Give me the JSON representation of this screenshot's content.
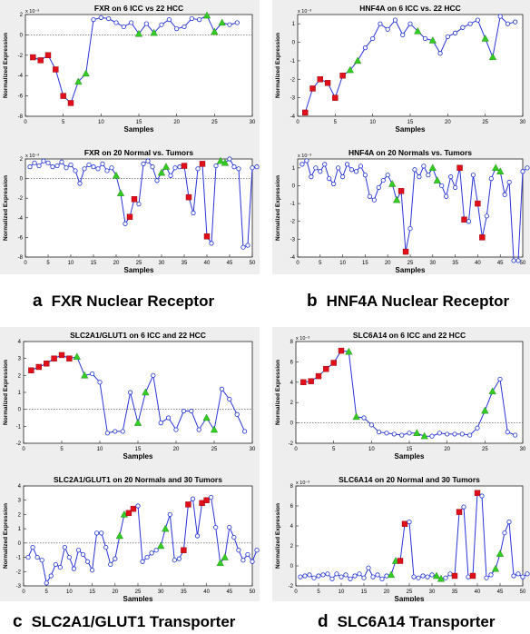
{
  "colors": {
    "line": "#2a35d8",
    "marker_normal": "#1a2fd0",
    "marker_red": "#e0101a",
    "marker_green": "#33cc22"
  },
  "panels": [
    {
      "letter": "a",
      "caption": "FXR Nuclear Receptor"
    },
    {
      "letter": "b",
      "caption": "HNF4A Nuclear Receptor"
    },
    {
      "letter": "c",
      "caption": "SLC2A1/GLUT1 Transporter"
    },
    {
      "letter": "d",
      "caption": "SLC6A14 Transporter"
    }
  ],
  "chart_data": [
    {
      "type": "line",
      "panel": "a",
      "title": "FXR on 6 ICC vs 22 HCC",
      "xlabel": "Samples",
      "ylabel": "Normalized Expression",
      "exponent": "x 10⁻³",
      "xlim": [
        0,
        30
      ],
      "ylim": [
        -8,
        2
      ],
      "xticks": [
        0,
        5,
        10,
        15,
        20,
        25,
        30
      ],
      "yticks": [
        -8,
        -6,
        -4,
        -2,
        0,
        2
      ],
      "zero_line": true,
      "values": [
        -2.2,
        -2.5,
        -2.0,
        -3.4,
        -6.0,
        -6.7,
        -4.6,
        -3.8,
        1.5,
        1.7,
        1.6,
        1.2,
        0.8,
        1.2,
        0.1,
        1.1,
        0.2,
        1.0,
        1.5,
        0.6,
        0.8,
        1.6,
        1.5,
        1.9,
        0.3,
        1.2,
        1.0,
        1.2
      ],
      "red_idx": [
        1,
        2,
        3,
        4,
        5,
        6
      ],
      "green_idx": [
        7,
        8,
        15,
        17,
        24,
        25,
        26
      ]
    },
    {
      "type": "line",
      "panel": "a",
      "title": "FXR on 20 Normal vs. Tumors",
      "xlabel": "Samples",
      "ylabel": "Normalized Expression",
      "exponent": "x 10⁻³",
      "xlim": [
        0,
        50
      ],
      "ylim": [
        -8,
        2
      ],
      "xticks": [
        0,
        5,
        10,
        15,
        20,
        25,
        30,
        35,
        40,
        45,
        50
      ],
      "yticks": [
        -8,
        -6,
        -4,
        -2,
        0,
        2
      ],
      "zero_line": true,
      "values": [
        1.2,
        1.6,
        1.3,
        1.8,
        1.6,
        1.2,
        1.3,
        1.7,
        1.1,
        1.4,
        0.8,
        -0.5,
        1.0,
        1.4,
        1.2,
        1.0,
        1.5,
        0.8,
        1.1,
        0.3,
        -1.5,
        -4.6,
        -3.9,
        -2.1,
        -2.6,
        1.5,
        1.8,
        1.2,
        -0.2,
        0.6,
        1.2,
        0.3,
        1.1,
        1.2,
        1.3,
        -1.9,
        -3.5,
        1.0,
        1.5,
        -5.9,
        -6.6,
        1.3,
        1.8,
        1.6,
        2.0,
        1.2,
        1.0,
        -7.0,
        -6.8,
        1.1,
        1.2
      ],
      "red_idx": [
        23,
        24,
        35,
        36,
        39,
        40
      ],
      "green_idx": [
        20,
        21,
        30,
        31,
        43,
        44
      ]
    },
    {
      "type": "line",
      "panel": "b",
      "title": "HNF4A on 6 ICC vs. 22 HCC",
      "xlabel": "Samples",
      "ylabel": "Normalized Expression",
      "exponent": "x 10⁻³",
      "xlim": [
        0,
        30
      ],
      "ylim": [
        -4,
        1.5
      ],
      "xticks": [
        0,
        5,
        10,
        15,
        20,
        25,
        30
      ],
      "yticks": [
        -4,
        -3,
        -2,
        -1,
        0,
        1
      ],
      "zero_line": false,
      "values": [
        -3.8,
        -2.5,
        -2.0,
        -2.2,
        -3.0,
        -1.8,
        -1.5,
        -1.0,
        -0.3,
        0.2,
        1.0,
        0.7,
        1.2,
        0.4,
        1.0,
        0.6,
        0.2,
        0.1,
        -0.6,
        0.3,
        0.5,
        0.8,
        1.0,
        1.2,
        0.2,
        -0.8,
        1.4,
        1.0,
        1.1
      ],
      "red_idx": [
        1,
        2,
        3,
        4,
        5,
        6
      ],
      "green_idx": [
        7,
        8,
        16,
        18,
        25,
        26
      ]
    },
    {
      "type": "line",
      "panel": "b",
      "title": "HNF4A on 20 Normals vs. Tumors",
      "xlabel": "Samples",
      "ylabel": "Normalized Expression",
      "exponent": "x 10⁻³",
      "xlim": [
        0,
        50
      ],
      "ylim": [
        -4,
        1.5
      ],
      "xticks": [
        0,
        5,
        10,
        15,
        20,
        25,
        30,
        35,
        40,
        45,
        50
      ],
      "yticks": [
        -4,
        -3,
        -2,
        -1,
        0,
        1
      ],
      "zero_line": false,
      "values": [
        1.2,
        1.4,
        0.5,
        1.0,
        0.8,
        1.2,
        0.4,
        0.1,
        1.0,
        0.5,
        1.2,
        0.9,
        0.8,
        1.1,
        0.6,
        -0.6,
        -0.8,
        -0.1,
        0.3,
        0.6,
        0.1,
        -0.8,
        -0.3,
        -3.7,
        -2.4,
        0.9,
        0.5,
        1.1,
        0.6,
        1.0,
        0.3,
        0.0,
        -0.6,
        0.5,
        -0.1,
        1.0,
        -1.9,
        -2.0,
        0.6,
        -1.0,
        -2.9,
        -1.7,
        0.4,
        1.0,
        0.8,
        -0.5,
        0.2,
        -4.2,
        -4.2,
        0.8,
        1.0
      ],
      "red_idx": [
        23,
        24,
        36,
        37,
        40,
        41
      ],
      "green_idx": [
        21,
        22,
        30,
        31,
        44,
        45
      ]
    },
    {
      "type": "line",
      "panel": "c",
      "title": "SLC2A1/GLUT1 on 6 ICC and 22 HCC",
      "xlabel": "Samples",
      "ylabel": "Normalized Expression",
      "exponent": "",
      "xlim": [
        0,
        30
      ],
      "ylim": [
        -2,
        4
      ],
      "xticks": [
        0,
        5,
        10,
        15,
        20,
        25,
        30
      ],
      "yticks": [
        -2,
        -1,
        0,
        1,
        2,
        3,
        4
      ],
      "zero_line": true,
      "values": [
        2.3,
        2.5,
        2.7,
        3.0,
        3.2,
        3.0,
        3.1,
        2.0,
        2.1,
        1.6,
        -1.4,
        -1.3,
        -1.3,
        1.0,
        -0.8,
        1.0,
        2.0,
        -0.8,
        -0.5,
        -1.2,
        -0.1,
        -0.1,
        -1.2,
        -0.5,
        -1.2,
        1.2,
        0.6,
        -0.3,
        -1.3
      ],
      "red_idx": [
        1,
        2,
        3,
        4,
        5,
        6
      ],
      "green_idx": [
        7,
        8,
        15,
        16,
        24,
        25
      ]
    },
    {
      "type": "line",
      "panel": "c",
      "title": "SLC2A1/GLUT1 on 20 Normals and 30 Tumors",
      "xlabel": "Samples",
      "ylabel": "Normalized Expression",
      "exponent": "",
      "xlim": [
        0,
        50
      ],
      "ylim": [
        -3,
        4
      ],
      "xticks": [
        0,
        5,
        10,
        15,
        20,
        25,
        30,
        35,
        40,
        45,
        50
      ],
      "yticks": [
        -3,
        -2,
        -1,
        0,
        1,
        2,
        3,
        4
      ],
      "zero_line": true,
      "values": [
        -1.0,
        -0.3,
        -1.0,
        -1.2,
        -2.8,
        -2.3,
        -1.5,
        -1.7,
        -0.3,
        -1.0,
        -1.8,
        -0.5,
        -0.8,
        -1.3,
        -1.9,
        0.7,
        0.7,
        -0.3,
        -1.5,
        -1.1,
        0.5,
        2.0,
        2.1,
        2.4,
        2.6,
        -1.3,
        -1.0,
        -0.7,
        -0.5,
        -0.2,
        1.0,
        2.0,
        -1.2,
        -1.1,
        -0.5,
        2.7,
        3.1,
        0.5,
        2.8,
        3.0,
        3.2,
        1.1,
        -1.4,
        -1.0,
        1.1,
        0.4,
        -0.5,
        -1.2,
        -0.8,
        -1.3,
        -0.5
      ],
      "red_idx": [
        23,
        24,
        35,
        36,
        39,
        40
      ],
      "green_idx": [
        21,
        22,
        30,
        31,
        43,
        44
      ]
    },
    {
      "type": "line",
      "panel": "d",
      "title": "SLC6A14 on 6 ICC and 22 HCC",
      "xlabel": "Samples",
      "ylabel": "Normalized Expression",
      "exponent": "x 10⁻³",
      "xlim": [
        0,
        30
      ],
      "ylim": [
        -2,
        8
      ],
      "xticks": [
        0,
        5,
        10,
        15,
        20,
        25,
        30
      ],
      "yticks": [
        -2,
        0,
        2,
        4,
        6,
        8
      ],
      "zero_line": true,
      "values": [
        4.0,
        4.1,
        4.6,
        5.3,
        5.9,
        7.1,
        7.0,
        0.6,
        0.5,
        -0.2,
        -0.9,
        -1.0,
        -1.1,
        -1.2,
        -1.0,
        -1.0,
        -1.3,
        -1.3,
        -1.0,
        -1.1,
        -1.1,
        -1.1,
        -1.2,
        -0.5,
        1.2,
        3.1,
        4.3,
        -0.9,
        -1.2
      ],
      "red_idx": [
        1,
        2,
        3,
        4,
        5,
        6
      ],
      "green_idx": [
        7,
        8,
        16,
        17,
        25,
        26
      ]
    },
    {
      "type": "line",
      "panel": "d",
      "title": "SLC6A14 on 20 Normal and 30 Tumors",
      "xlabel": "Samples",
      "ylabel": "Normalized Expression",
      "exponent": "x 10⁻³",
      "xlim": [
        0,
        50
      ],
      "ylim": [
        -2,
        8
      ],
      "xticks": [
        0,
        5,
        10,
        15,
        20,
        25,
        30,
        35,
        40,
        45,
        50
      ],
      "yticks": [
        -2,
        0,
        2,
        4,
        6,
        8
      ],
      "zero_line": false,
      "values": [
        -1.1,
        -1.0,
        -0.9,
        -1.2,
        -1.0,
        -0.9,
        -0.8,
        -1.3,
        -0.8,
        -1.1,
        -0.9,
        -1.3,
        -1.0,
        -0.8,
        -1.2,
        -0.2,
        -1.1,
        -0.9,
        -1.3,
        -1.0,
        -0.9,
        0.5,
        0.5,
        4.2,
        4.4,
        -1.1,
        -1.2,
        -1.0,
        -1.1,
        -0.9,
        -1.0,
        -1.3,
        -1.2,
        -0.8,
        -1.0,
        5.4,
        5.9,
        -1.1,
        -1.0,
        7.3,
        7.0,
        -1.2,
        -0.9,
        -0.3,
        1.2,
        3.3,
        4.4,
        -1.0,
        -0.8,
        -1.1,
        -0.8
      ],
      "red_idx": [
        23,
        24,
        35,
        36,
        39,
        40
      ],
      "green_idx": [
        21,
        22,
        31,
        32,
        44,
        45
      ]
    }
  ]
}
